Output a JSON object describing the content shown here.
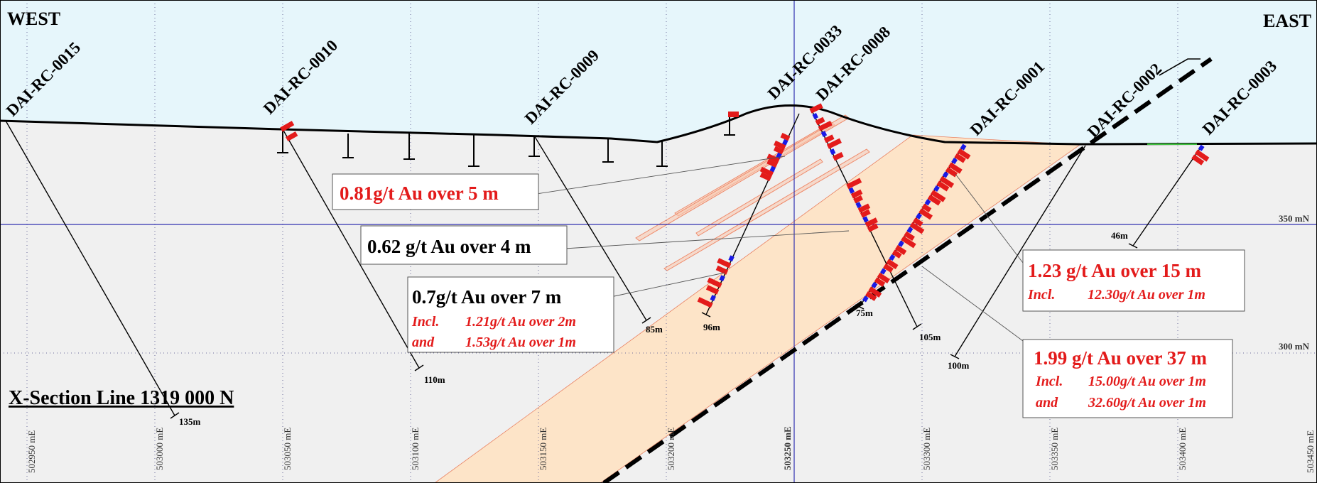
{
  "orientation": {
    "west": "WEST",
    "east": "EAST"
  },
  "title": "X-Section Line 1319 000 N",
  "eastings": [
    "502950 mE",
    "503000 mE",
    "503050 mE",
    "503100 mE",
    "503150 mE",
    "503200 mE",
    "503250 mE",
    "503300 mE",
    "503350 mE",
    "503400 mE",
    "503450 mE"
  ],
  "elevations": {
    "rl350": "350 mN",
    "rl300": "300 mN"
  },
  "holes": [
    {
      "id": "DAI-RC-0015",
      "depth": "135m"
    },
    {
      "id": "DAI-RC-0010",
      "depth": "110m"
    },
    {
      "id": "DAI-RC-0009",
      "depth": "85m"
    },
    {
      "id": "DAI-RC-0033",
      "depth": "96m"
    },
    {
      "id": "DAI-RC-0008",
      "depth": "105m"
    },
    {
      "id": "DAI-RC-0001",
      "depth": "75m"
    },
    {
      "id": "DAI-RC-0002",
      "depth": "100m"
    },
    {
      "id": "DAI-RC-0003",
      "depth": "46m"
    }
  ],
  "intercepts": [
    {
      "main": "0.81g/t Au over 5 m",
      "color": "#e31b1b",
      "lines": []
    },
    {
      "main": "0.62 g/t Au over 4 m",
      "color": "#000000",
      "lines": []
    },
    {
      "main": "0.7g/t Au over 7 m",
      "color": "#000000",
      "lines": [
        {
          "label": "Incl.",
          "value": "1.21g/t Au over 2m"
        },
        {
          "label": "and",
          "value": "1.53g/t Au over 1m"
        }
      ]
    },
    {
      "main": "1.23 g/t Au over 15 m",
      "color": "#e31b1b",
      "lines": [
        {
          "label": "Incl.",
          "value": "12.30g/t Au over 1m"
        }
      ]
    },
    {
      "main": "1.99 g/t Au over 37 m",
      "color": "#e31b1b",
      "lines": [
        {
          "label": "Incl.",
          "value": "15.00g/t Au over 1m"
        },
        {
          "label": "and",
          "value": "32.60g/t Au over 1m"
        }
      ]
    }
  ],
  "colors": {
    "sky": "#e6f6fb",
    "ground": "#f0f0f0",
    "zone": "#fde4c8",
    "assay_high": "#e31b1b",
    "assay_low": "#1a1ae6",
    "grid": "#3030b0"
  }
}
